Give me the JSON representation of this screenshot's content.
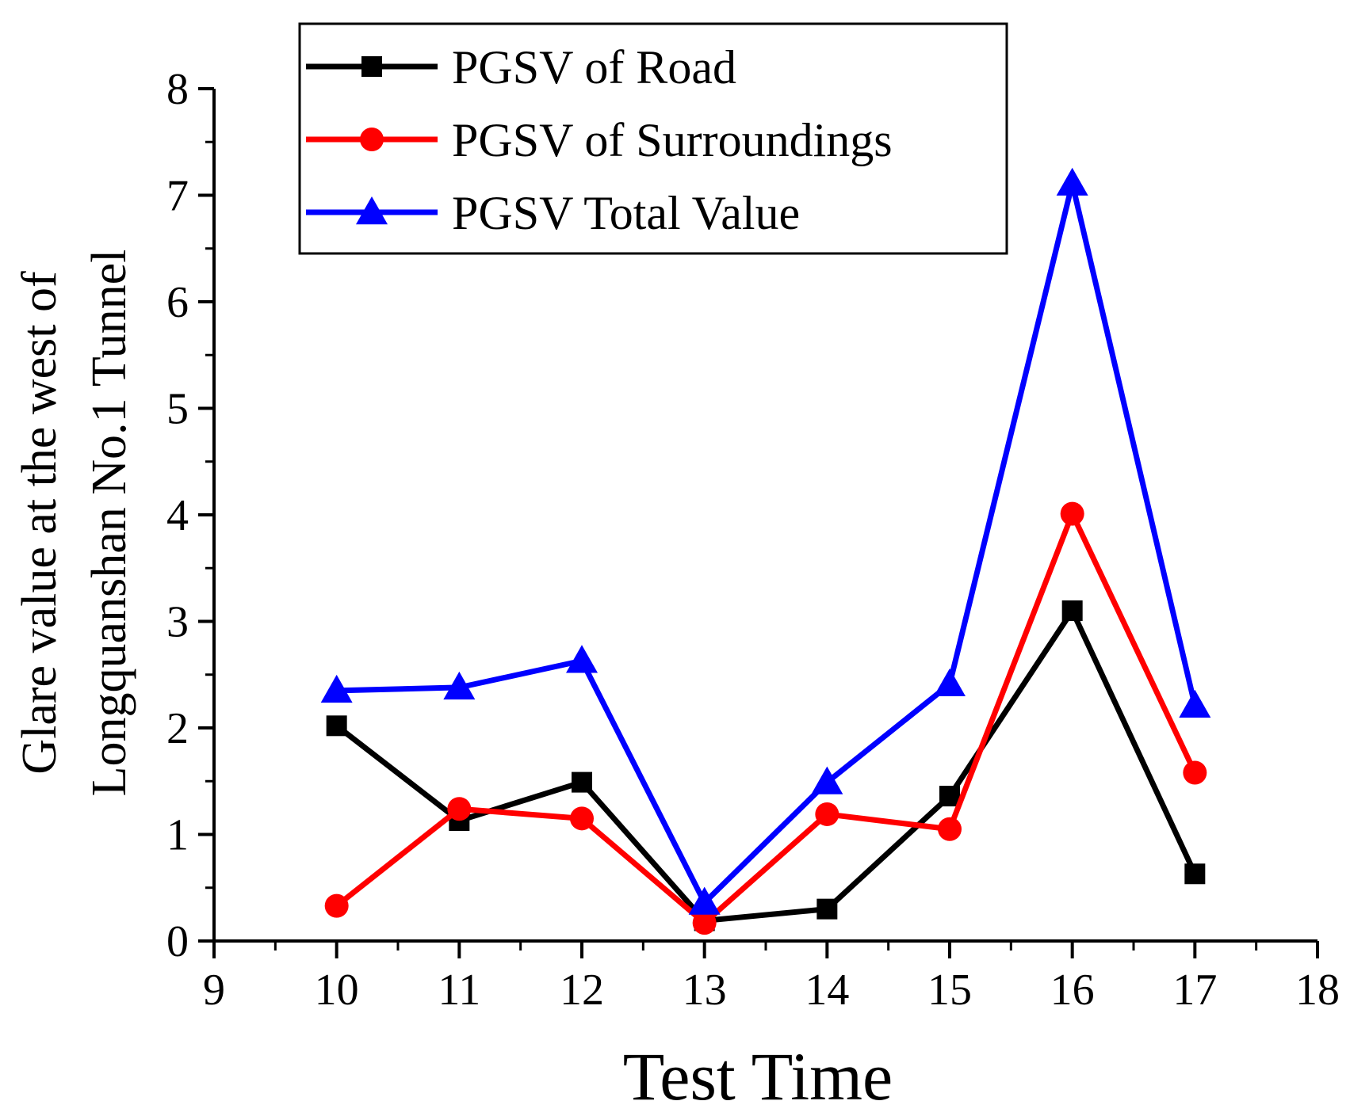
{
  "chart_data": {
    "type": "line",
    "title": "",
    "xlabel": "Test Time",
    "ylabel_lines": [
      "Glare value at the west of",
      "Longquanshan No.1 Tunnel"
    ],
    "xlim": [
      9,
      18
    ],
    "ylim": [
      0,
      8
    ],
    "x_ticks": [
      9,
      10,
      11,
      12,
      13,
      14,
      15,
      16,
      17,
      18
    ],
    "y_ticks": [
      0,
      1,
      2,
      3,
      4,
      5,
      6,
      7,
      8
    ],
    "grid": false,
    "legend_position": "top-left",
    "x": [
      10,
      11,
      12,
      13,
      14,
      15,
      16,
      17
    ],
    "series": [
      {
        "name": "PGSV of Road",
        "color": "#000000",
        "marker": "square",
        "values": [
          2.02,
          1.13,
          1.49,
          0.19,
          0.3,
          1.36,
          3.1,
          0.63
        ]
      },
      {
        "name": "PGSV of Surroundings",
        "color": "#ff0000",
        "marker": "circle",
        "values": [
          0.33,
          1.24,
          1.15,
          0.17,
          1.19,
          1.05,
          4.01,
          1.58
        ]
      },
      {
        "name": "PGSV Total Value",
        "color": "#0000ff",
        "marker": "triangle",
        "values": [
          2.35,
          2.38,
          2.63,
          0.36,
          1.49,
          2.41,
          7.11,
          2.21
        ]
      }
    ]
  }
}
